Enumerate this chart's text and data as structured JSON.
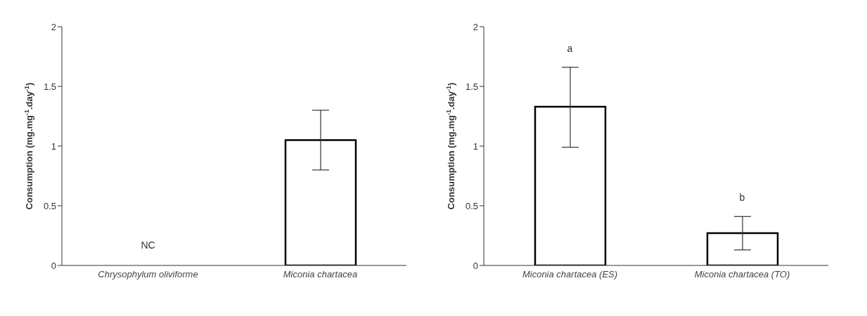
{
  "chart_data": [
    {
      "type": "bar",
      "ylabel": "Consumption (mg.mg$^{-1}$.day$^{-1}$)",
      "categories": [
        "Chrysophylum oliviforme",
        "Miconia chartacea"
      ],
      "values": [
        null,
        1.05
      ],
      "errors": [
        null,
        [
          0.8,
          1.3
        ]
      ],
      "color": "#ffffff",
      "ylim": [
        0,
        2
      ],
      "yticks": [
        0,
        0.5,
        1,
        1.5,
        2
      ],
      "grid": false,
      "legend": false,
      "annotations": [
        "NC"
      ]
    },
    {
      "type": "bar",
      "ylabel": "Consumption (mg.mg$^{-1}$.day$^{-1}$)",
      "categories": [
        "Miconia chartacea  (ES)",
        "Miconia chartacea  (TO)"
      ],
      "values": [
        1.33,
        0.27
      ],
      "errors": [
        [
          0.99,
          1.66
        ],
        [
          0.13,
          0.41
        ]
      ],
      "color": "#ffffff",
      "ylim": [
        0,
        2
      ],
      "yticks": [
        0,
        0.5,
        1,
        1.5,
        2
      ],
      "grid": false,
      "legend": false,
      "annotations": [
        "a",
        "b"
      ]
    }
  ]
}
